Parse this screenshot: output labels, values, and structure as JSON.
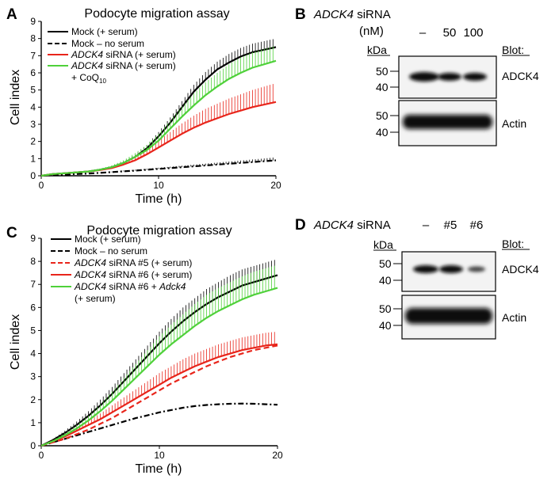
{
  "panels": {
    "A": {
      "label": "A",
      "chart_data": {
        "type": "line",
        "title": "Podocyte migration assay",
        "xlabel": "Time (h)",
        "ylabel": "Cell index",
        "xlim": [
          0,
          20
        ],
        "ylim": [
          0,
          9
        ],
        "xticks": [
          "0",
          "10",
          "20"
        ],
        "yticks": [
          "0",
          "1",
          "2",
          "3",
          "4",
          "5",
          "6",
          "7",
          "8",
          "9"
        ],
        "x": [
          0,
          1,
          2,
          3,
          4,
          5,
          6,
          7,
          8,
          9,
          10,
          11,
          12,
          13,
          14,
          15,
          16,
          17,
          18,
          19,
          20
        ],
        "series": [
          {
            "values": [
              0,
              0.1,
              0.15,
              0.2,
              0.25,
              0.35,
              0.5,
              0.75,
              1.1,
              1.6,
              2.3,
              3.1,
              4.0,
              4.9,
              5.6,
              6.2,
              6.6,
              6.95,
              7.2,
              7.35,
              7.5
            ],
            "err": [
              0,
              0,
              0,
              0,
              0.02,
              0.05,
              0.08,
              0.1,
              0.15,
              0.2,
              0.25,
              0.3,
              0.35,
              0.4,
              0.45,
              0.45,
              0.5,
              0.5,
              0.5,
              0.5,
              0.5
            ],
            "color": "#000000",
            "dash": "solid"
          },
          {
            "values": [
              0,
              0.03,
              0.06,
              0.1,
              0.13,
              0.17,
              0.21,
              0.26,
              0.3,
              0.35,
              0.4,
              0.45,
              0.5,
              0.55,
              0.6,
              0.65,
              0.7,
              0.75,
              0.8,
              0.85,
              0.9
            ],
            "err": [
              0,
              0,
              0,
              0,
              0,
              0.02,
              0.03,
              0.04,
              0.05,
              0.06,
              0.07,
              0.08,
              0.09,
              0.1,
              0.11,
              0.12,
              0.13,
              0.14,
              0.15,
              0.16,
              0.18
            ],
            "color": "#000000",
            "dash": "dashdot"
          },
          {
            "values": [
              0,
              0.1,
              0.15,
              0.2,
              0.25,
              0.33,
              0.45,
              0.65,
              0.9,
              1.25,
              1.65,
              2.05,
              2.45,
              2.8,
              3.1,
              3.35,
              3.6,
              3.8,
              4.0,
              4.15,
              4.3
            ],
            "err": [
              0,
              0,
              0,
              0,
              0.02,
              0.05,
              0.1,
              0.15,
              0.22,
              0.3,
              0.4,
              0.5,
              0.6,
              0.7,
              0.8,
              0.85,
              0.9,
              0.95,
              1.0,
              1.05,
              1.1
            ],
            "color": "#e8251b",
            "dash": "solid"
          },
          {
            "values": [
              0,
              0.1,
              0.15,
              0.2,
              0.25,
              0.35,
              0.5,
              0.75,
              1.1,
              1.5,
              2.05,
              2.75,
              3.45,
              4.1,
              4.7,
              5.2,
              5.65,
              6.0,
              6.3,
              6.5,
              6.7
            ],
            "err": [
              0,
              0,
              0,
              0,
              0.02,
              0.05,
              0.1,
              0.15,
              0.22,
              0.3,
              0.4,
              0.5,
              0.6,
              0.7,
              0.75,
              0.8,
              0.85,
              0.9,
              0.9,
              0.9,
              0.9
            ],
            "color": "#4fd13a",
            "dash": "solid"
          }
        ],
        "legend": [
          {
            "text": "Mock (+ serum)",
            "color": "#000000",
            "dash": "solid"
          },
          {
            "text": "Mock – no serum",
            "color": "#000000",
            "dash": "dashed"
          },
          {
            "italic": "ADCK4",
            "text": " siRNA (+ serum)",
            "color": "#e8251b",
            "dash": "solid"
          },
          {
            "italic": "ADCK4",
            "text": " siRNA (+ serum)",
            "color": "#4fd13a",
            "dash": "solid"
          }
        ],
        "legend_extra": {
          "text": "+ CoQ",
          "sub": "10"
        }
      }
    },
    "C": {
      "label": "C",
      "chart_data": {
        "type": "line",
        "title": "Podocyte migration assay",
        "xlabel": "Time (h)",
        "ylabel": "Cell index",
        "xlim": [
          0,
          20
        ],
        "ylim": [
          0,
          9
        ],
        "xticks": [
          "0",
          "10",
          "20"
        ],
        "yticks": [
          "0",
          "1",
          "2",
          "3",
          "4",
          "5",
          "6",
          "7",
          "8",
          "9"
        ],
        "x": [
          0,
          1,
          2,
          3,
          4,
          5,
          6,
          7,
          8,
          9,
          10,
          11,
          12,
          13,
          14,
          15,
          16,
          17,
          18,
          19,
          20
        ],
        "series": [
          {
            "values": [
              0,
              0.25,
              0.55,
              0.9,
              1.3,
              1.75,
              2.25,
              2.8,
              3.35,
              3.9,
              4.45,
              4.95,
              5.4,
              5.8,
              6.15,
              6.45,
              6.7,
              6.95,
              7.1,
              7.25,
              7.4
            ],
            "err": [
              0,
              0.05,
              0.1,
              0.15,
              0.2,
              0.25,
              0.3,
              0.35,
              0.4,
              0.45,
              0.5,
              0.55,
              0.6,
              0.6,
              0.65,
              0.65,
              0.7,
              0.7,
              0.7,
              0.7,
              0.7
            ],
            "color": "#000000",
            "dash": "solid"
          },
          {
            "values": [
              0,
              0.15,
              0.3,
              0.45,
              0.6,
              0.75,
              0.9,
              1.05,
              1.2,
              1.32,
              1.45,
              1.55,
              1.65,
              1.72,
              1.77,
              1.8,
              1.82,
              1.83,
              1.82,
              1.8,
              1.78
            ],
            "err": [
              0,
              0,
              0,
              0,
              0,
              0,
              0,
              0,
              0,
              0,
              0,
              0,
              0,
              0,
              0,
              0,
              0,
              0,
              0,
              0,
              0
            ],
            "color": "#000000",
            "dash": "dashdot"
          },
          {
            "values": [
              0,
              0.15,
              0.3,
              0.5,
              0.7,
              0.95,
              1.2,
              1.5,
              1.8,
              2.1,
              2.4,
              2.7,
              2.95,
              3.2,
              3.45,
              3.65,
              3.85,
              4.0,
              4.15,
              4.25,
              4.35
            ],
            "err": [
              0,
              0,
              0,
              0,
              0,
              0,
              0,
              0,
              0,
              0,
              0,
              0,
              0,
              0,
              0,
              0,
              0,
              0,
              0,
              0,
              0
            ],
            "color": "#e8251b",
            "dash": "dashed"
          },
          {
            "values": [
              0,
              0.2,
              0.4,
              0.65,
              0.9,
              1.15,
              1.45,
              1.75,
              2.05,
              2.35,
              2.65,
              2.95,
              3.2,
              3.45,
              3.65,
              3.85,
              4.0,
              4.15,
              4.25,
              4.35,
              4.4
            ],
            "err": [
              0,
              0.05,
              0.1,
              0.15,
              0.2,
              0.25,
              0.3,
              0.35,
              0.4,
              0.45,
              0.5,
              0.5,
              0.55,
              0.55,
              0.55,
              0.55,
              0.55,
              0.55,
              0.55,
              0.55,
              0.55
            ],
            "color": "#e8251b",
            "dash": "solid"
          },
          {
            "values": [
              0,
              0.2,
              0.45,
              0.75,
              1.1,
              1.5,
              1.95,
              2.45,
              2.95,
              3.45,
              3.95,
              4.4,
              4.8,
              5.2,
              5.55,
              5.85,
              6.1,
              6.35,
              6.55,
              6.7,
              6.85
            ],
            "err": [
              0,
              0.05,
              0.1,
              0.15,
              0.2,
              0.3,
              0.4,
              0.5,
              0.6,
              0.7,
              0.8,
              0.85,
              0.9,
              0.95,
              1.0,
              1.0,
              1.0,
              1.0,
              1.0,
              1.0,
              1.0
            ],
            "color": "#4fd13a",
            "dash": "solid"
          }
        ],
        "legend": [
          {
            "text": "Mock (+ serum)",
            "color": "#000000",
            "dash": "solid"
          },
          {
            "text": "Mock – no serum",
            "color": "#000000",
            "dash": "dashed"
          },
          {
            "italic": "ADCK4",
            "text": " siRNA #5 (+ serum)",
            "color": "#e8251b",
            "dash": "dashed"
          },
          {
            "italic": "ADCK4",
            "text": " siRNA #6 (+ serum)",
            "color": "#e8251b",
            "dash": "solid"
          },
          {
            "italic": "ADCK4",
            "text": " siRNA #6 + ",
            "italic2": "Adck4",
            "color": "#4fd13a",
            "dash": "solid"
          }
        ],
        "legend_extra": {
          "text": "(+ serum)"
        }
      }
    },
    "B": {
      "label": "B",
      "header_italic": "ADCK4",
      "header_text": " siRNA",
      "units": "(nM)",
      "lanes": [
        "–",
        "50",
        "100"
      ],
      "kda": "kDa",
      "blot_header": "Blot:",
      "blots": [
        {
          "name": "ADCK4",
          "markers": [
            "50",
            "40"
          ]
        },
        {
          "name": "Actin",
          "markers": [
            "50",
            "40"
          ]
        }
      ]
    },
    "D": {
      "label": "D",
      "header_italic": "ADCK4",
      "header_text": " siRNA",
      "lanes": [
        "–",
        "#5",
        "#6"
      ],
      "kda": "kDa",
      "blot_header": "Blot:",
      "blots": [
        {
          "name": "ADCK4",
          "markers": [
            "50",
            "40"
          ]
        },
        {
          "name": "Actin",
          "markers": [
            "50",
            "40"
          ]
        }
      ]
    }
  }
}
